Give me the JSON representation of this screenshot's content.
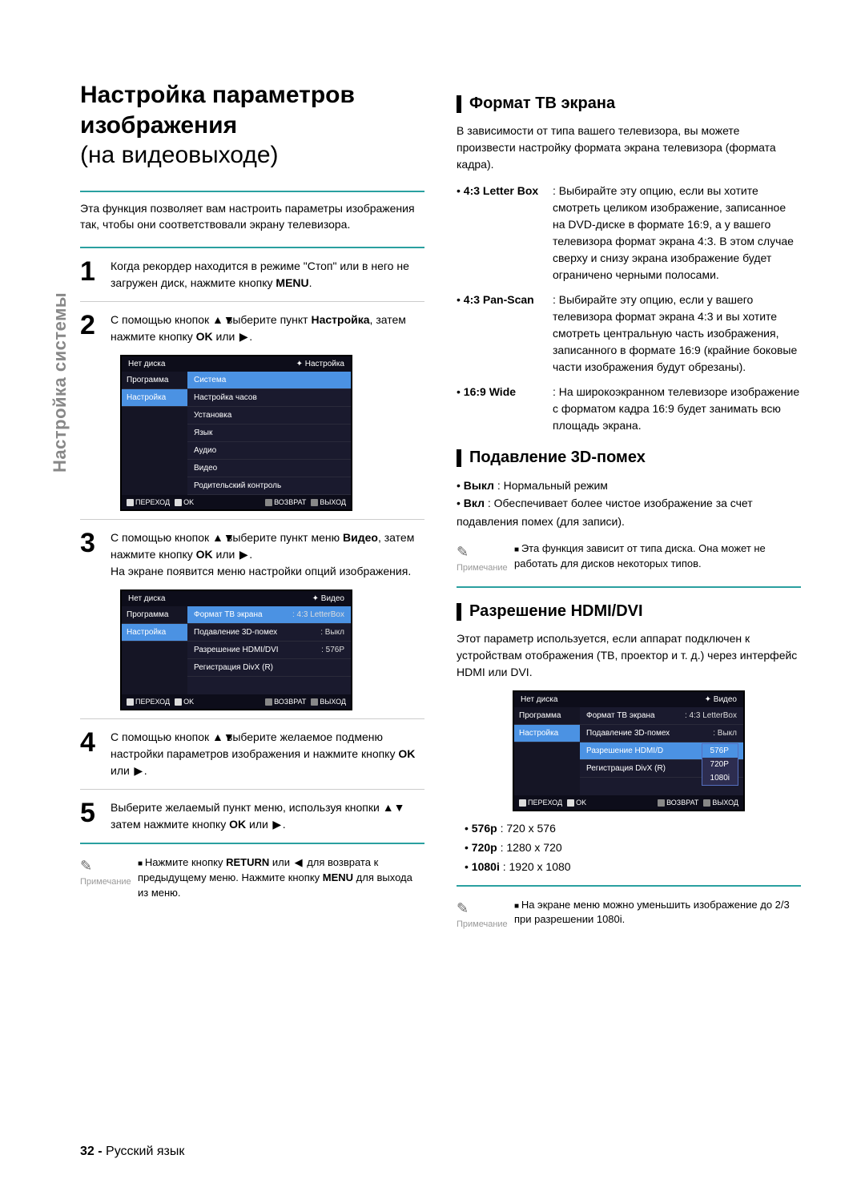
{
  "sidebar_label": "Настройка системы",
  "title_top": "Настройка параметров изображения",
  "title_bottom": "(на видеовыходе)",
  "intro": "Эта функция позволяет вам настроить параметры изображения так, чтобы они соответствовали экрану телевизора.",
  "steps": {
    "s1": "Когда рекордер находится в режиме \"Стоп\" или в него не загружен диск, нажмите кнопку ",
    "s1_bold": "MENU",
    "s1_tail": ".",
    "s2a": "С помощью кнопок ",
    "s2b": " выберите пункт ",
    "s2c_bold": "Настройка",
    "s2d": ", затем нажмите кнопку ",
    "s2e_bold": "OK",
    "s2f": " или ",
    "s2g": ".",
    "s3a": "С помощью кнопок ",
    "s3b": " выберите пункт меню ",
    "s3c_bold": "Видео",
    "s3d": ", затем нажмите кнопку ",
    "s3e_bold": "OK",
    "s3f": " или ",
    "s3g": ".",
    "s3_tail": "На экране появится меню настройки опций изображения.",
    "s4a": "С помощью кнопок ",
    "s4b": " выберите желаемое подменю настройки параметров изображения и нажмите кнопку ",
    "s4c_bold": "OK",
    "s4d": " или ",
    "s4e": ".",
    "s5a": "Выберите желаемый пункт меню, используя кнопки ",
    "s5b": " затем нажмите кнопку ",
    "s5c_bold": "OK",
    "s5d": " или ",
    "s5e": "."
  },
  "note1_label": "Примечание",
  "note1_l1a": "Нажмите кнопку ",
  "note1_l1b": "RETURN",
  "note1_l1c": " или ",
  "note1_l1d": " для возврата к предыдущему меню. Нажмите кнопку ",
  "note1_l1e": "MENU",
  "note1_l1f": " для выхода из меню.",
  "screenshot1": {
    "header_left": "Нет диска",
    "header_right": "Настройка",
    "left": [
      "Программа",
      "Настройка"
    ],
    "right": [
      {
        "label": "Система",
        "val": ""
      },
      {
        "label": "Настройка часов",
        "val": ""
      },
      {
        "label": "Установка",
        "val": ""
      },
      {
        "label": "Язык",
        "val": ""
      },
      {
        "label": "Аудио",
        "val": ""
      },
      {
        "label": "Видео",
        "val": ""
      },
      {
        "label": "Родительский контроль",
        "val": ""
      }
    ],
    "right_sel": 0,
    "footer": [
      "ПЕРЕХОД",
      "OK",
      "ВОЗВРАТ",
      "ВЫХОД"
    ]
  },
  "screenshot2": {
    "header_left": "Нет диска",
    "header_right": "Видео",
    "left": [
      "Программа",
      "Настройка"
    ],
    "right": [
      {
        "label": "Формат ТВ экрана",
        "val": ": 4:3 LetterBox"
      },
      {
        "label": "Подавление 3D-помех",
        "val": ": Выкл"
      },
      {
        "label": "Разрешение HDMI/DVI",
        "val": ": 576P"
      },
      {
        "label": "Регистрация DivX (R)",
        "val": ""
      }
    ],
    "right_sel": 0,
    "footer": [
      "ПЕРЕХОД",
      "OK",
      "ВОЗВРАТ",
      "ВЫХОД"
    ]
  },
  "sect_format_title": "Формат ТВ экрана",
  "sect_format_intro": "В зависимости от типа вашего телевизора, вы можете произвести настройку формата экрана телевизора (формата кадра).",
  "format_items": [
    {
      "key": "4:3 Letter Box",
      "text": ": Выбирайте эту опцию, если вы хотите смотреть целиком изображение, записанное на DVD-диске в формате 16:9, а у вашего телевизора формат экрана 4:3. В этом случае сверху и снизу экрана изображение будет ограничено черными полосами."
    },
    {
      "key": "4:3 Pan-Scan",
      "text": ": Выбирайте эту опцию, если у вашего телевизора формат экрана 4:3 и вы хотите смотреть центральную часть изображения, записанного в формате 16:9 (крайние боковые части изображения будут обрезаны)."
    },
    {
      "key": "16:9 Wide",
      "text": ": На широкоэкранном телевизоре изображение с форматом кадра 16:9 будет занимать всю площадь экрана."
    }
  ],
  "sect_3d_title": "Подавление 3D-помех",
  "d3_items": [
    {
      "key": "Выкл",
      "text": ": Нормальный режим"
    },
    {
      "key": "Вкл",
      "text": ": Обеспечивает более чистое изображение за счет подавления помех (для записи)."
    }
  ],
  "note2_label": "Примечание",
  "note2_text": "Эта функция зависит от типа диска. Она может не работать для дисков некоторых типов.",
  "sect_hdmi_title": "Разрешение HDMI/DVI",
  "sect_hdmi_intro": "Этот параметр используется, если аппарат подключен к устройствам отображения (ТВ, проектор и т. д.) через интерфейс HDMI или DVI.",
  "screenshot3": {
    "header_left": "Нет диска",
    "header_right": "Видео",
    "left": [
      "Программа",
      "Настройка"
    ],
    "right": [
      {
        "label": "Формат ТВ экрана",
        "val": ": 4:3 LetterBox"
      },
      {
        "label": "Подавление 3D-помех",
        "val": ": Выкл"
      },
      {
        "label": "Разрешение HDMI/D",
        "val": ""
      },
      {
        "label": "Регистрация DivX (R)",
        "val": ""
      }
    ],
    "right_sel": 2,
    "popup": [
      "576P",
      "720P",
      "1080i"
    ],
    "popup_sel": 0,
    "footer": [
      "ПЕРЕХОД",
      "OK",
      "ВОЗВРАТ",
      "ВЫХОД"
    ]
  },
  "resolutions": [
    {
      "key": "576p",
      "val": ": 720 x 576"
    },
    {
      "key": "720p",
      "val": ": 1280 x 720"
    },
    {
      "key": "1080i",
      "val": ": 1920 x 1080"
    }
  ],
  "note3_label": "Примечание",
  "note3_text": "На экране меню можно уменьшить изображение до 2/3 при разрешении 1080i.",
  "page_num": "32 -",
  "page_lang": "Русский язык",
  "colors": {
    "teal": "#2aa0a0",
    "gray_text": "#888",
    "ss_bg": "#1a1a2e",
    "ss_sel": "#4b92e3"
  }
}
